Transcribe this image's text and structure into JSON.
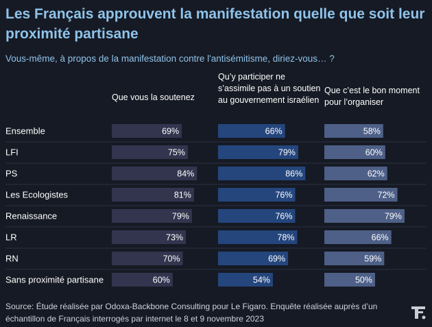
{
  "title": "Les Français approuvent la manifestation quelle que soit leur proximité partisane",
  "subtitle": "Vous-même, à propos de la manifestation contre l'antisémitisme, diriez-vous… ?",
  "source": "Source: Étude réalisée par Odoxa-Backbone Consulting pour Le Figaro. Enquête réalisée auprès d’un échantillon de Français interrogés par internet le 8 et 9 novembre 2023",
  "logo_icon": "le-figaro-logo-icon",
  "colors": {
    "background": "#161a24",
    "title": "#8fc3ea",
    "series": [
      "#33344e",
      "#24467d",
      "#4e6087"
    ]
  },
  "chart_data": {
    "type": "bar",
    "orientation": "horizontal",
    "layout": "small-multiples",
    "categories": [
      "Ensemble",
      "LFI",
      "PS",
      "Les Ecologistes",
      "Renaissance",
      "LR",
      "RN",
      "Sans proximité partisane"
    ],
    "series": [
      {
        "name": "Que vous la soutenez",
        "values": [
          69,
          75,
          84,
          81,
          79,
          73,
          70,
          60
        ]
      },
      {
        "name": "Qu’y participer ne s’assimile pas à un soutien au gouvernement israélien",
        "values": [
          66,
          79,
          86,
          76,
          76,
          78,
          69,
          54
        ]
      },
      {
        "name": "Que c’est le bon moment pour l’organiser",
        "values": [
          58,
          60,
          62,
          72,
          79,
          66,
          59,
          50
        ]
      }
    ],
    "unit": "%",
    "grid": false,
    "legend": "column-headers"
  }
}
